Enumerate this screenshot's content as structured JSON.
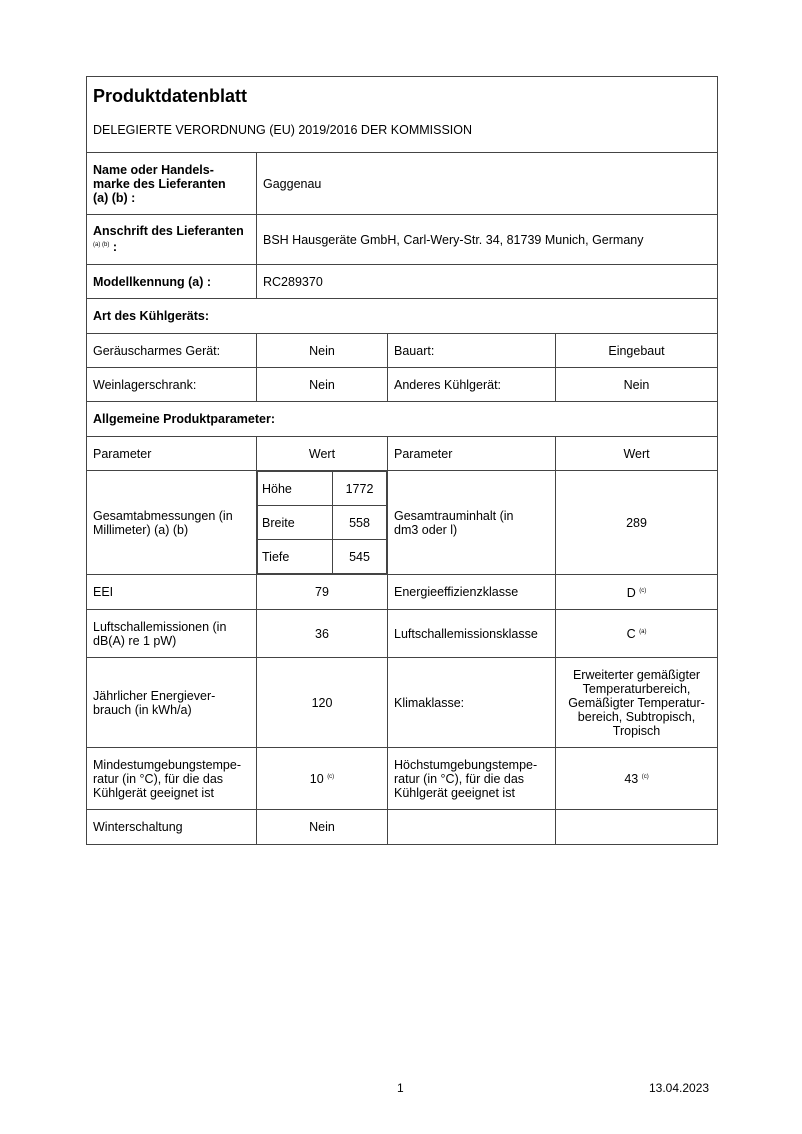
{
  "title": "Produktdatenblatt",
  "subtitle": "DELEGIERTE VERORDNUNG (EU) 2019/2016 DER KOMMISSION",
  "supplier_name_label": "Name oder Handels-marke des Lieferanten (a) (b) :",
  "supplier_name": "Gaggenau",
  "address_label": "Anschrift des Lieferanten",
  "address_note": "(a) (b)",
  "address": "BSH Hausgeräte GmbH, Carl-Wery-Str. 34, 81739 Munich, Germany",
  "model_label": "Modellkennung (a) :",
  "model": "RC289370",
  "type_heading": "Art des Kühlgeräts:",
  "type_rows": [
    {
      "p1": "Geräuscharmes Gerät:",
      "v1": "Nein",
      "p2": "Bauart:",
      "v2": "Eingebaut"
    },
    {
      "p1": "Weinlagerschrank:",
      "v1": "Nein",
      "p2": "Anderes Kühlgerät:",
      "v2": "Nein"
    }
  ],
  "general_heading": "Allgemeine Produktparameter:",
  "col_param": "Parameter",
  "col_value": "Wert",
  "dims": {
    "label": "Gesamtabmessungen (in Millimeter) (a) (b)",
    "height_label": "Höhe",
    "height": "1772",
    "width_label": "Breite",
    "width": "558",
    "depth_label": "Tiefe",
    "depth": "545",
    "volume_label": "Gesamtrauminhalt (in dm3 oder l)",
    "volume": "289"
  },
  "rows": [
    {
      "p1": "EEI",
      "v1": "79",
      "p2": "Energieeffizienzklasse",
      "v2": "D",
      "v2note": "(c)"
    },
    {
      "p1": "Luftschallemissionen (in dB(A) re 1 pW)",
      "v1": "36",
      "p2": "Luftschallemissionsklasse",
      "v2": "C",
      "v2note": "(a)"
    },
    {
      "p1": "Jährlicher Energiever-brauch (in kWh/a)",
      "v1": "120",
      "p2": "Klimaklasse:",
      "v2": "Erweiterter gemäßigter Temperaturbereich, Gemäßigter Temperatur-bereich, Subtropisch, Tropisch"
    },
    {
      "p1": "Mindestumgebungstempe-ratur (in °C), für die das Kühlgerät geeignet ist",
      "v1": "10",
      "v1note": "(c)",
      "p2": "Höchstumgebungstempe-ratur (in °C), für die das Kühlgerät geeignet ist",
      "v2": "43",
      "v2note": "(c)"
    },
    {
      "p1": "Winterschaltung",
      "v1": "Nein",
      "p2": "",
      "v2": ""
    }
  ],
  "footer": {
    "page": "1",
    "date": "13.04.2023"
  }
}
